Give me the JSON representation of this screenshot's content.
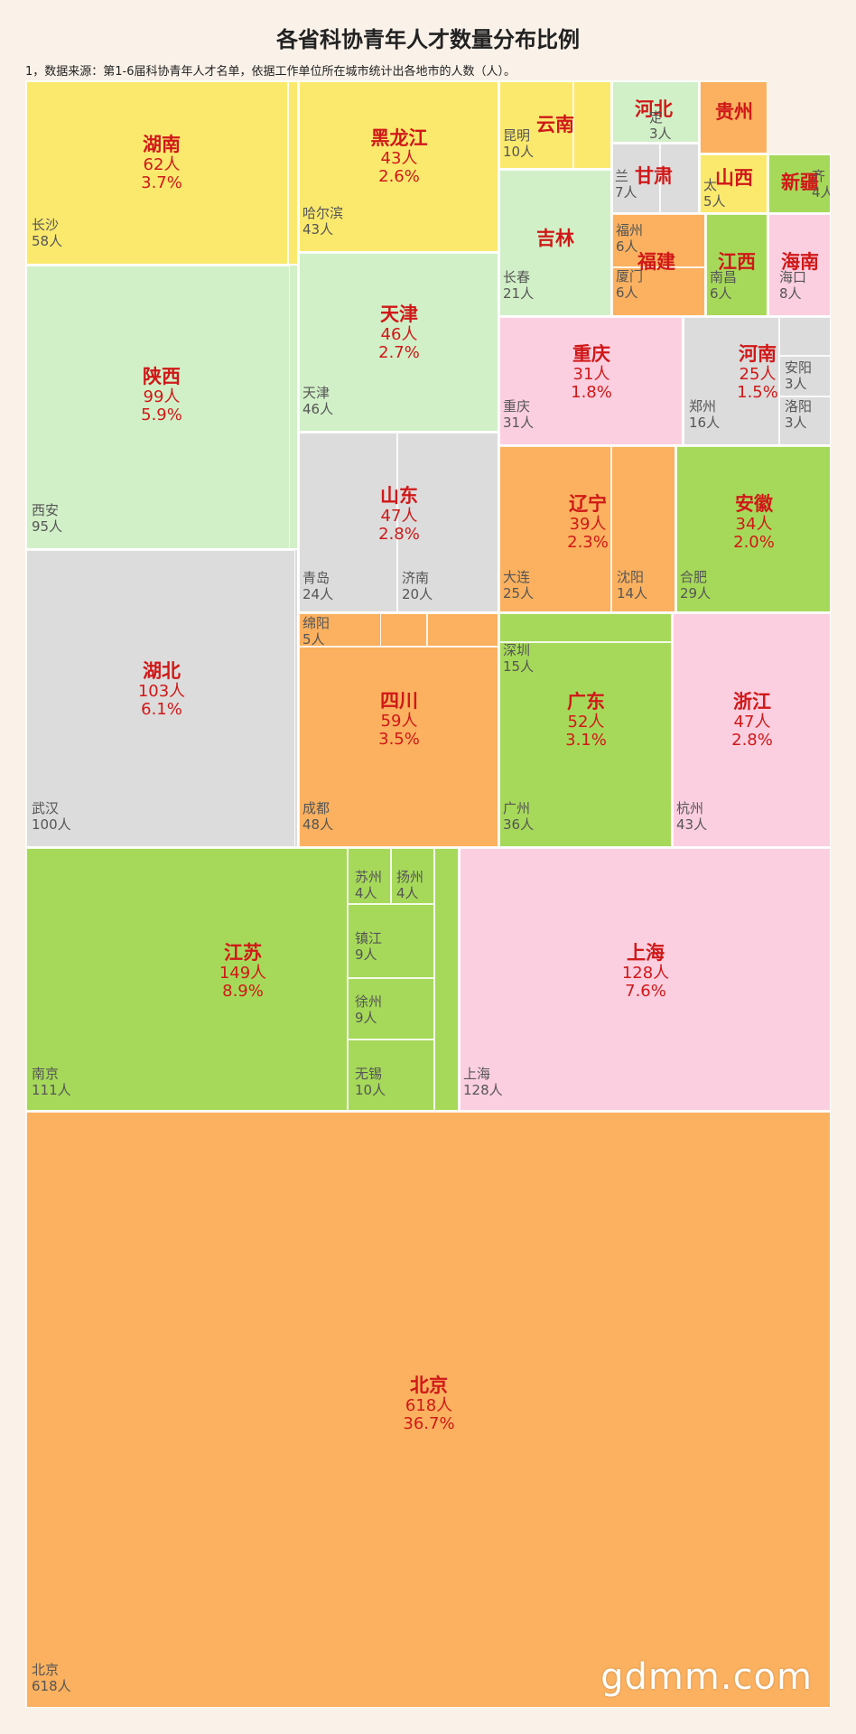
{
  "chart_data": {
    "type": "treemap",
    "title": "各省科协青年人才数量分布比例",
    "subtitle": "1，数据来源：第1-6届科协青年人才名单，依据工作单位所在城市统计出各地市的人数（人）。",
    "colors": {
      "yellow": "#fbe96e",
      "green_light": "#d2f0c8",
      "gray": "#dcdcdc",
      "pink": "#fccfe0",
      "orange": "#fbb15f",
      "green": "#a6d95a"
    },
    "provinces": [
      {
        "name": "湖南",
        "count": "62人",
        "pct": "3.7%",
        "value": 62,
        "color": "yellow",
        "cities": [
          {
            "name": "长沙",
            "count": "58人",
            "value": 58
          }
        ]
      },
      {
        "name": "陕西",
        "count": "99人",
        "pct": "5.9%",
        "value": 99,
        "color": "green_light",
        "cities": [
          {
            "name": "西安",
            "count": "95人",
            "value": 95
          }
        ]
      },
      {
        "name": "湖北",
        "count": "103人",
        "pct": "6.1%",
        "value": 103,
        "color": "gray",
        "cities": [
          {
            "name": "武汉",
            "count": "100人",
            "value": 100
          }
        ]
      },
      {
        "name": "黑龙江",
        "count": "43人",
        "pct": "2.6%",
        "value": 43,
        "color": "yellow",
        "cities": [
          {
            "name": "哈尔滨",
            "count": "43人",
            "value": 43
          }
        ]
      },
      {
        "name": "天津",
        "count": "46人",
        "pct": "2.7%",
        "value": 46,
        "color": "green_light",
        "cities": [
          {
            "name": "天津",
            "count": "46人",
            "value": 46
          }
        ]
      },
      {
        "name": "山东",
        "count": "47人",
        "pct": "2.8%",
        "value": 47,
        "color": "gray",
        "cities": [
          {
            "name": "青岛",
            "count": "24人",
            "value": 24
          },
          {
            "name": "济南",
            "count": "20人",
            "value": 20
          }
        ]
      },
      {
        "name": "四川",
        "count": "59人",
        "pct": "3.5%",
        "value": 59,
        "color": "orange",
        "cities": [
          {
            "name": "绵阳",
            "count": "5人",
            "value": 5
          },
          {
            "name": "成都",
            "count": "48人",
            "value": 48
          }
        ]
      },
      {
        "name": "云南",
        "count": "",
        "pct": "",
        "value": 10,
        "color": "yellow",
        "cities": [
          {
            "name": "昆明",
            "count": "10人",
            "value": 10
          }
        ]
      },
      {
        "name": "吉林",
        "count": "",
        "pct": "",
        "value": 21,
        "color": "green_light",
        "cities": [
          {
            "name": "长春",
            "count": "21人",
            "value": 21
          }
        ]
      },
      {
        "name": "河北",
        "count": "",
        "pct": "",
        "value": 3,
        "color": "green_light",
        "cities": [
          {
            "name": "定",
            "count": "3人",
            "value": 3
          }
        ]
      },
      {
        "name": "甘肃",
        "count": "",
        "pct": "",
        "value": 7,
        "color": "gray",
        "cities": [
          {
            "name": "兰",
            "count": "7人",
            "value": 7
          }
        ]
      },
      {
        "name": "贵州",
        "count": "",
        "pct": "",
        "value": 5,
        "color": "orange",
        "cities": []
      },
      {
        "name": "山西",
        "count": "",
        "pct": "",
        "value": 5,
        "color": "yellow",
        "cities": [
          {
            "name": "太",
            "count": "5人",
            "value": 5
          }
        ]
      },
      {
        "name": "新疆",
        "count": "",
        "pct": "",
        "value": 4,
        "color": "green",
        "cities": [
          {
            "name": "齐",
            "count": "4人",
            "value": 4
          }
        ]
      },
      {
        "name": "福建",
        "count": "",
        "pct": "",
        "value": 12,
        "color": "orange",
        "cities": [
          {
            "name": "福州",
            "count": "6人",
            "value": 6
          },
          {
            "name": "厦门",
            "count": "6人",
            "value": 6
          }
        ]
      },
      {
        "name": "江西",
        "count": "",
        "pct": "",
        "value": 6,
        "color": "green",
        "cities": [
          {
            "name": "南昌",
            "count": "6人",
            "value": 6
          }
        ]
      },
      {
        "name": "海南",
        "count": "",
        "pct": "",
        "value": 8,
        "color": "pink",
        "cities": [
          {
            "name": "海口",
            "count": "8人",
            "value": 8
          }
        ]
      },
      {
        "name": "重庆",
        "count": "31人",
        "pct": "1.8%",
        "value": 31,
        "color": "pink",
        "cities": [
          {
            "name": "重庆",
            "count": "31人",
            "value": 31
          }
        ]
      },
      {
        "name": "河南",
        "count": "25人",
        "pct": "1.5%",
        "value": 25,
        "color": "gray",
        "cities": [
          {
            "name": "郑州",
            "count": "16人",
            "value": 16
          },
          {
            "name": "安阳",
            "count": "3人",
            "value": 3
          },
          {
            "name": "洛阳",
            "count": "3人",
            "value": 3
          }
        ]
      },
      {
        "name": "辽宁",
        "count": "39人",
        "pct": "2.3%",
        "value": 39,
        "color": "orange",
        "cities": [
          {
            "name": "大连",
            "count": "25人",
            "value": 25
          },
          {
            "name": "沈阳",
            "count": "14人",
            "value": 14
          }
        ]
      },
      {
        "name": "安徽",
        "count": "34人",
        "pct": "2.0%",
        "value": 34,
        "color": "green",
        "cities": [
          {
            "name": "合肥",
            "count": "29人",
            "value": 29
          }
        ]
      },
      {
        "name": "广东",
        "count": "52人",
        "pct": "3.1%",
        "value": 52,
        "color": "green",
        "cities": [
          {
            "name": "深圳",
            "count": "15人",
            "value": 15
          },
          {
            "name": "广州",
            "count": "36人",
            "value": 36
          }
        ]
      },
      {
        "name": "浙江",
        "count": "47人",
        "pct": "2.8%",
        "value": 47,
        "color": "pink",
        "cities": [
          {
            "name": "杭州",
            "count": "43人",
            "value": 43
          }
        ]
      },
      {
        "name": "江苏",
        "count": "149人",
        "pct": "8.9%",
        "value": 149,
        "color": "green",
        "cities": [
          {
            "name": "南京",
            "count": "111人",
            "value": 111
          },
          {
            "name": "苏州",
            "count": "4人",
            "value": 4
          },
          {
            "name": "扬州",
            "count": "4人",
            "value": 4
          },
          {
            "name": "镇江",
            "count": "9人",
            "value": 9
          },
          {
            "name": "徐州",
            "count": "9人",
            "value": 9
          },
          {
            "name": "无锡",
            "count": "10人",
            "value": 10
          }
        ]
      },
      {
        "name": "上海",
        "count": "128人",
        "pct": "7.6%",
        "value": 128,
        "color": "pink",
        "cities": [
          {
            "name": "上海",
            "count": "128人",
            "value": 128
          }
        ]
      },
      {
        "name": "北京",
        "count": "618人",
        "pct": "36.7%",
        "value": 618,
        "color": "orange",
        "cities": [
          {
            "name": "北京",
            "count": "618人",
            "value": 618
          }
        ]
      }
    ]
  },
  "watermark": "gdmm.com"
}
